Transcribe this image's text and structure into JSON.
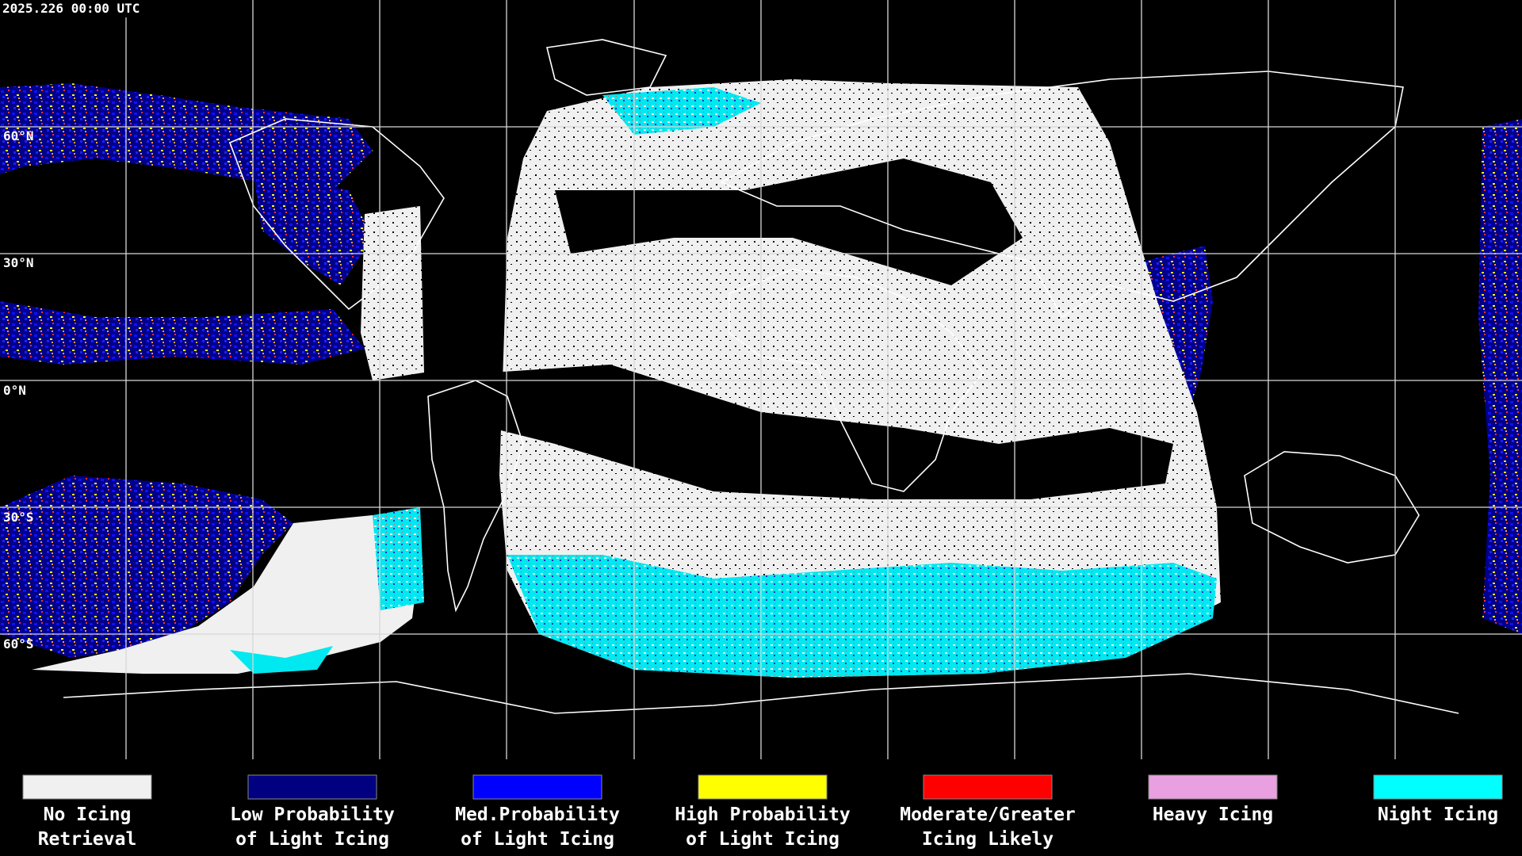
{
  "timestamp": "2025.226 00:00 UTC",
  "latitude_labels": [
    "60°N",
    "30°N",
    "0°N",
    "30°S",
    "60°S"
  ],
  "legend": [
    {
      "label": [
        "No Icing",
        "Retrieval"
      ],
      "color": "#f0f0f0"
    },
    {
      "label": [
        "Low Probability",
        "of Light Icing"
      ],
      "color": "#000080"
    },
    {
      "label": [
        "Med.Probability",
        "of Light Icing"
      ],
      "color": "#0000ff"
    },
    {
      "label": [
        "High Probability",
        "of Light Icing"
      ],
      "color": "#ffff00"
    },
    {
      "label": [
        "Moderate/Greater",
        "Icing Likely"
      ],
      "color": "#ff0000"
    },
    {
      "label": [
        "Heavy Icing"
      ],
      "color": "#e8a0e0"
    },
    {
      "label": [
        "Night Icing"
      ],
      "color": "#00ffff"
    }
  ]
}
